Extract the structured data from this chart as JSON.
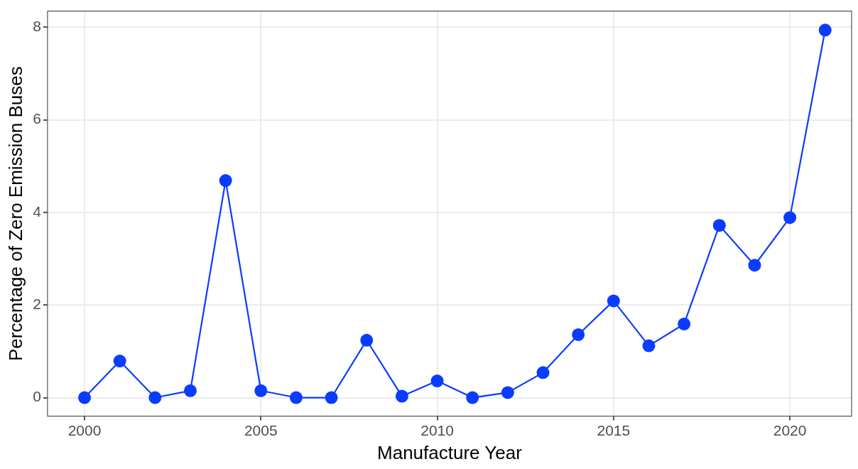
{
  "chart_data": {
    "type": "line",
    "xlabel": "Manufacture Year",
    "ylabel": "Percentage of Zero Emission Buses",
    "x": [
      2000,
      2001,
      2002,
      2003,
      2004,
      2005,
      2006,
      2007,
      2008,
      2009,
      2010,
      2011,
      2012,
      2013,
      2014,
      2015,
      2016,
      2017,
      2018,
      2019,
      2020,
      2021
    ],
    "series": [
      {
        "color": "#0a3cff",
        "values": [
          0,
          0.79,
          0,
          0.15,
          4.69,
          0.15,
          0,
          0,
          1.24,
          0.03,
          0.36,
          0,
          0.11,
          0.54,
          1.36,
          2.09,
          1.12,
          1.59,
          3.72,
          2.86,
          3.89,
          7.94
        ]
      }
    ],
    "xlim": [
      1998.95,
      2021.75
    ],
    "xticks": [
      2000,
      2005,
      2010,
      2015,
      2020
    ],
    "ylim": [
      -0.4,
      8.35
    ],
    "yticks": [
      0,
      2,
      4,
      6,
      8
    ],
    "grid": true,
    "legend": false,
    "marker": "circle",
    "line_style": "solid"
  }
}
